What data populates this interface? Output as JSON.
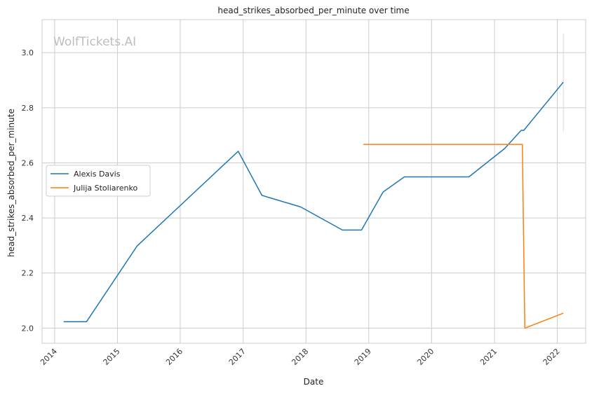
{
  "watermark": "WolfTickets.AI",
  "chart_data": {
    "type": "line",
    "title": "head_strikes_absorbed_per_minute over time",
    "xlabel": "Date",
    "ylabel": "head_strikes_absorbed_per_minute",
    "x_ticks": [
      "2014",
      "2015",
      "2016",
      "2017",
      "2018",
      "2019",
      "2020",
      "2021",
      "2022"
    ],
    "y_ticks": [
      "2.0",
      "2.2",
      "2.4",
      "2.6",
      "2.8",
      "3.0"
    ],
    "xlim": [
      "2013-10-20",
      "2022-06-15"
    ],
    "ylim": [
      1.945,
      3.12
    ],
    "grid": true,
    "legend": "center-left",
    "series": [
      {
        "name": "Alexis Davis",
        "color": "#1f77b4",
        "points": [
          [
            "2014-02-22",
            2.023
          ],
          [
            "2014-07-05",
            2.023
          ],
          [
            "2015-04-25",
            2.298
          ],
          [
            "2016-12-03",
            2.642
          ],
          [
            "2017-04-20",
            2.482
          ],
          [
            "2017-12-01",
            2.44
          ],
          [
            "2018-08-01",
            2.356
          ],
          [
            "2018-11-20",
            2.356
          ],
          [
            "2019-03-25",
            2.494
          ],
          [
            "2019-07-27",
            2.549
          ],
          [
            "2020-08-05",
            2.549
          ],
          [
            "2021-03-01",
            2.652
          ],
          [
            "2021-06-05",
            2.718
          ],
          [
            "2021-06-20",
            2.718
          ],
          [
            "2022-02-05",
            2.893
          ]
        ]
      },
      {
        "name": "Julija Stoliarenko",
        "color": "#ff7f0e",
        "points": [
          [
            "2018-11-30",
            2.667
          ],
          [
            "2021-06-12",
            2.667
          ],
          [
            "2021-06-26",
            2.0
          ],
          [
            "2022-02-05",
            2.054
          ]
        ]
      }
    ],
    "vertical_marker": {
      "x": "2022-02-05",
      "y_range": [
        2.715,
        3.07
      ],
      "color": "#d8d8d8"
    }
  }
}
